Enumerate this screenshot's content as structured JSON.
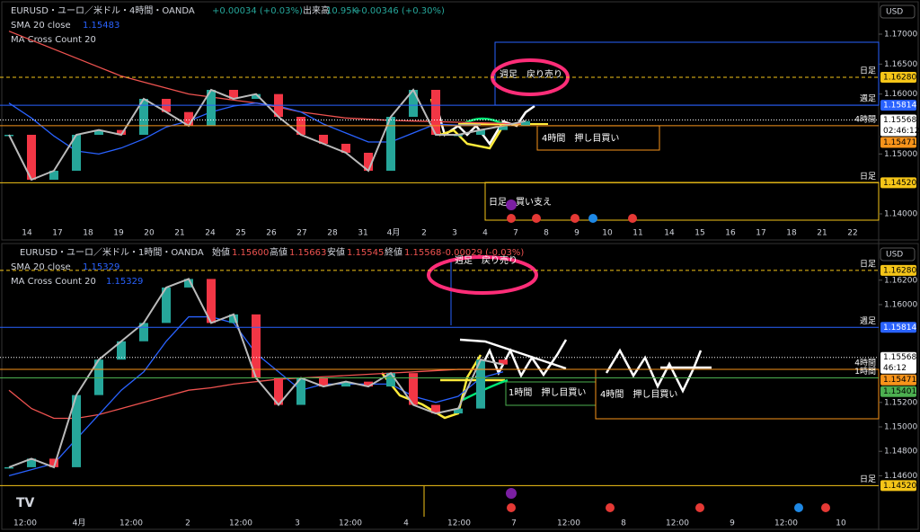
{
  "panels": [
    {
      "header": {
        "symbol": "EURUSD・ユーロ／米ドル・4時間・OANDA",
        "change": "+0.00034 (+0.03%)",
        "volume_label": "出来高",
        "volume": "10.95K",
        "volume_change": "+0.00346 (+0.30%)"
      },
      "indicators": [
        {
          "name": "SMA 20 close",
          "value": "1.15483"
        },
        {
          "name": "MA Cross Count 20"
        }
      ],
      "currency": "USD",
      "ylim": [
        1.137,
        1.1715
      ],
      "yticks": [
        {
          "value": 1.17,
          "label": "1.17000"
        },
        {
          "value": 1.165,
          "label": "1.16500"
        },
        {
          "value": 1.16,
          "label": "1.16000"
        },
        {
          "value": 1.15,
          "label": "1.15000"
        },
        {
          "value": 1.14,
          "label": "1.14000"
        }
      ],
      "levels": [
        {
          "value": 1.1628,
          "label": "1.16280",
          "tag": "日足",
          "color": "#f5c518",
          "style": "dashed"
        },
        {
          "value": 1.15814,
          "label": "1.15814",
          "tag": "週足",
          "color": "#2962ff",
          "style": "solid"
        },
        {
          "value": 1.15568,
          "label": "1.15568",
          "sub": "02:46:12",
          "color": "#ffffff",
          "style": "dotted"
        },
        {
          "value": 1.15471,
          "label": "1.15471",
          "tag": "4時間",
          "color": "#f7931a",
          "style": "solid"
        },
        {
          "value": 1.1452,
          "label": "1.14520",
          "tag": "日足",
          "color": "#f5c518",
          "style": "solid"
        }
      ],
      "x_labels": [
        "14",
        "17",
        "18",
        "19",
        "20",
        "21",
        "24",
        "25",
        "26",
        "27",
        "28",
        "31",
        "4月",
        "2",
        "3",
        "4",
        "7",
        "8",
        "9",
        "10",
        "11",
        "14",
        "15",
        "16",
        "17",
        "18",
        "21",
        "22"
      ],
      "annotations": [
        "週足　戻り売り",
        "4時間　押し目買い",
        "日足　買い支え"
      ],
      "price": [
        1.1532,
        1.1457,
        1.1472,
        1.1532,
        1.154,
        1.1532,
        1.1592,
        1.157,
        1.1547,
        1.1607,
        1.1592,
        1.16,
        1.1562,
        1.1532,
        1.1517,
        1.1502,
        1.1472,
        1.1562,
        1.1607,
        1.1532,
        1.1532,
        1.154,
        1.1547,
        1.1555
      ],
      "sma": [
        1.1585,
        1.156,
        1.153,
        1.1505,
        1.15,
        1.151,
        1.1525,
        1.1545,
        1.1555,
        1.157,
        1.158,
        1.1585,
        1.158,
        1.157,
        1.155,
        1.1535,
        1.152,
        1.152,
        1.1535,
        1.155,
        1.1548,
        1.1548,
        null,
        null
      ],
      "ma": [
        1.1705,
        1.169,
        1.1675,
        1.166,
        1.1645,
        1.163,
        1.162,
        1.161,
        1.16,
        1.1595,
        1.159,
        1.1585,
        1.1578,
        1.157,
        1.1565,
        1.156,
        1.1558,
        1.1556,
        1.1555,
        1.1554,
        1.1553,
        1.1552,
        1.1551,
        1.155
      ]
    },
    {
      "header": {
        "symbol": "EURUSD・ユーロ／米ドル・1時間・OANDA",
        "ohlc": [
          {
            "label": "始値",
            "value": "1.15600"
          },
          {
            "label": "高値",
            "value": "1.15663"
          },
          {
            "label": "安値",
            "value": "1.15545"
          },
          {
            "label": "終値",
            "value": "1.15568"
          }
        ],
        "change": "-0.00029 (-0.03%)"
      },
      "indicators": [
        {
          "name": "SMA 20 close",
          "value": "1.15329"
        },
        {
          "name": "MA Cross Count 20",
          "value": "1.15329"
        }
      ],
      "currency": "USD",
      "ylim": [
        1.1439,
        1.1636
      ],
      "yticks": [
        {
          "value": 1.162,
          "label": "1.16200"
        },
        {
          "value": 1.16,
          "label": "1.16000"
        },
        {
          "value": 1.152,
          "label": "1.15200"
        },
        {
          "value": 1.15,
          "label": "1.15000"
        },
        {
          "value": 1.148,
          "label": "1.14800"
        },
        {
          "value": 1.146,
          "label": "1.14600"
        }
      ],
      "levels": [
        {
          "value": 1.1628,
          "label": "1.16280",
          "tag": "日足",
          "color": "#f5c518",
          "style": "dashed"
        },
        {
          "value": 1.15814,
          "label": "1.15814",
          "tag": "週足",
          "color": "#2962ff",
          "style": "solid"
        },
        {
          "value": 1.15568,
          "label": "1.15568",
          "sub": "46:12",
          "color": "#ffffff",
          "style": "dotted"
        },
        {
          "value": 1.15471,
          "label": "1.15471",
          "tag": "4時間",
          "color": "#f7931a",
          "style": "solid"
        },
        {
          "value": 1.15401,
          "label": "1.15401",
          "tag": "1時間",
          "color": "#4caf50",
          "style": "solid"
        },
        {
          "value": 1.1452,
          "label": "1.14520",
          "tag": "日足",
          "color": "#f5c518",
          "style": "solid"
        }
      ],
      "x_labels": [
        "12:00",
        "4月",
        "12:00",
        "2",
        "12:00",
        "3",
        "12:00",
        "4",
        "12:00",
        "7",
        "12:00",
        "8",
        "12:00",
        "9",
        "12:00",
        "10"
      ],
      "annotations": [
        "週足　戻り売り",
        "1時間　押し目買い",
        "4時間　押し目買い"
      ],
      "price": [
        1.1467,
        1.1474,
        1.1467,
        1.1526,
        1.1555,
        1.157,
        1.1585,
        1.1614,
        1.1621,
        1.1585,
        1.1592,
        1.154,
        1.1518,
        1.154,
        1.1533,
        1.1537,
        1.1533,
        1.1544,
        1.1518,
        1.1511,
        1.1515,
        1.1555,
        1.1551
      ],
      "sma": [
        1.146,
        1.1465,
        1.147,
        1.149,
        1.151,
        1.153,
        1.1545,
        1.157,
        1.159,
        1.159,
        1.1585,
        1.156,
        1.1545,
        1.153,
        1.1535,
        1.1535,
        1.1535,
        1.1535,
        1.1525,
        1.152,
        1.1525,
        1.154,
        1.1545
      ],
      "ma": [
        1.153,
        1.1515,
        1.1507,
        1.1507,
        1.151,
        1.1515,
        1.152,
        1.1525,
        1.153,
        1.1532,
        1.1535,
        1.1537,
        1.1539,
        1.154,
        1.1541,
        1.1542,
        1.1543,
        1.1544,
        1.1545,
        1.1546,
        1.1547,
        1.1547,
        1.1547
      ]
    }
  ]
}
